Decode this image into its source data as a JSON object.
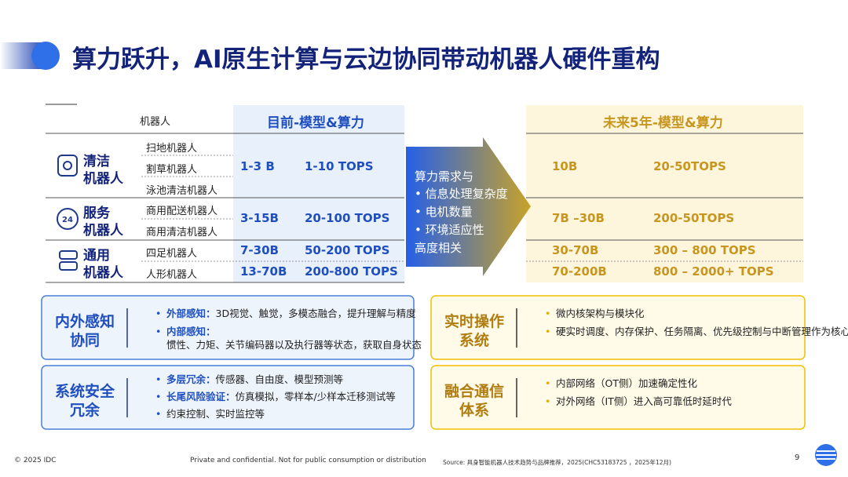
{
  "header": {
    "title": "算力跃升，AI原生计算与云边协同带动机器人硬件重构"
  },
  "table": {
    "head": {
      "robot": "机器人",
      "current": "目前-模型&算力",
      "future": "未来5年-模型&算力"
    },
    "groups": [
      {
        "label": [
          "清洁",
          "机器人"
        ],
        "items": [
          "扫地机器人",
          "割草机器人",
          "泳池清洁机器人"
        ],
        "current": [
          [
            "1-3 B",
            "1-10 TOPS"
          ]
        ],
        "future": [
          [
            "10B",
            "20-50TOPS"
          ]
        ]
      },
      {
        "label": [
          "服务",
          "机器人"
        ],
        "items": [
          "商用配送机器人",
          "商用清洁机器人"
        ],
        "current": [
          [
            "3-15B",
            "20-100 TOPS"
          ]
        ],
        "future": [
          [
            "7B –30B",
            "200-50TOPS"
          ]
        ]
      },
      {
        "label": [
          "通用",
          "机器人"
        ],
        "items": [
          "四足机器人",
          "人形机器人"
        ],
        "current": [
          [
            "7-30B",
            "50-200 TOPS"
          ],
          [
            "13-70B",
            "200-800 TOPS"
          ]
        ],
        "future": [
          [
            "30-70B",
            "300 – 800 TOPS"
          ],
          [
            "70-200B",
            "800 – 2000+ TOPS"
          ]
        ]
      }
    ]
  },
  "arrow": {
    "lead": "算力需求与",
    "bullets": [
      "信息处理复杂度",
      "电机数量",
      "环境适应性"
    ],
    "tail": "高度相关"
  },
  "boxes": [
    {
      "title": [
        "内外感知",
        "协同"
      ],
      "items": [
        {
          "bold": "外部感知：",
          "text": "3D视觉、触觉，多模态融合，提升理解与精度"
        },
        {
          "bold": "内部感知：",
          "text": "惯性、力矩、关节编码器以及执行器等状态，获取自身状态"
        }
      ]
    },
    {
      "title": [
        "系统安全",
        "冗余"
      ],
      "items": [
        {
          "bold": "多层冗余：",
          "text": "传感器、自由度、模型预测等"
        },
        {
          "bold": "长尾风险验证：",
          "text": "仿真模拟，零样本/少样本迁移测试等"
        },
        {
          "text": "约束控制、实时监控等"
        }
      ]
    },
    {
      "title": [
        "实时操作",
        "系统"
      ],
      "items": [
        {
          "text": "微内核架构与模块化"
        },
        {
          "text": "硬实时调度、内存保护、任务隔离、优先级控制与中断管理作为核心，支撑嵌入式，分布式架构，国产平台等"
        }
      ]
    },
    {
      "title": [
        "融合通信",
        "体系"
      ],
      "items": [
        {
          "text": "内部网络（OT侧）加速确定性化"
        },
        {
          "text": "对外网络（IT侧）进入高可靠低时延时代"
        }
      ]
    }
  ],
  "footer": {
    "copyright": "© 2025 IDC",
    "notice": "Private and confidential. Not for public consumption or distribution",
    "source": "Source: 具身智能机器人技术趋势与品牌推荐，2025(CHC53183725 ，2025年12月)",
    "page": "9"
  }
}
